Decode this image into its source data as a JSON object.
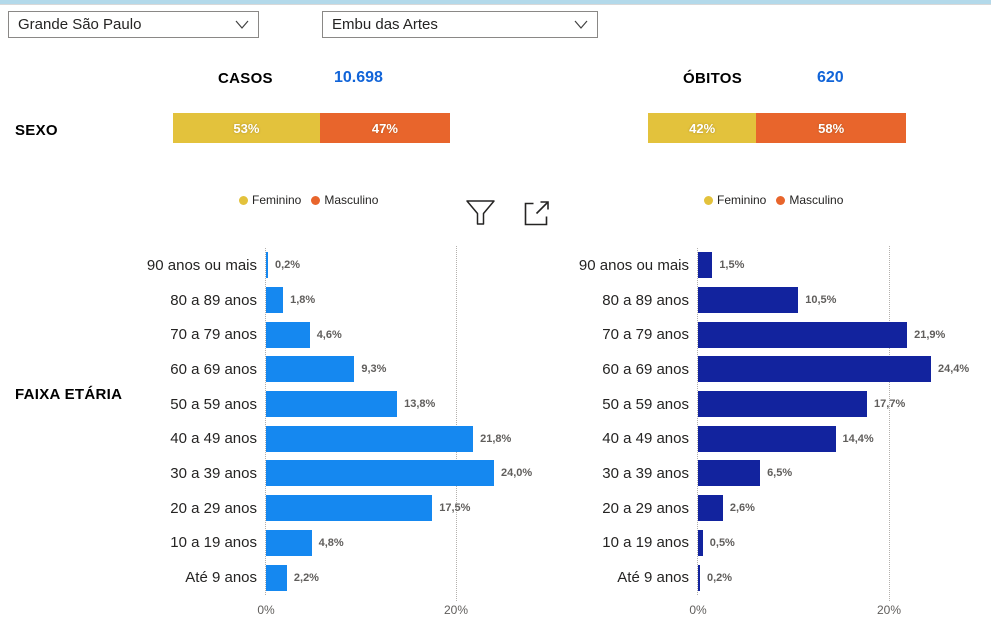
{
  "filters": {
    "region_select": "Grande São Paulo",
    "city_select": "Embu das Artes"
  },
  "kpis": {
    "casos_label": "CASOS",
    "casos_value": "10.698",
    "obitos_label": "ÓBITOS",
    "obitos_value": "620"
  },
  "sexo_section": {
    "label": "SEXO",
    "casos": {
      "feminino_pct": 53,
      "masculino_pct": 47,
      "feminino_label": "53%",
      "masculino_label": "47%"
    },
    "obitos": {
      "feminino_pct": 42,
      "masculino_pct": 58,
      "feminino_label": "42%",
      "masculino_label": "58%"
    }
  },
  "legend": {
    "feminino": "Feminino",
    "masculino": "Masculino"
  },
  "faixa_section": {
    "label": "FAIXA ETÁRIA"
  },
  "colors": {
    "feminino": "#E3C23C",
    "masculino": "#E8652C",
    "casos_bar": "#1588F0",
    "obitos_bar": "#12239E",
    "kpi_value_text": "#1164D8",
    "top_strip": "#B3D9EA"
  },
  "chart_data": [
    {
      "type": "bar",
      "orientation": "horizontal",
      "name": "casos-por-faixa-etaria",
      "categories": [
        "90 anos ou mais",
        "80 a 89 anos",
        "70 a 79 anos",
        "60 a 69 anos",
        "50 a 59 anos",
        "40 a 49 anos",
        "30 a 39 anos",
        "20 a 29 anos",
        "10 a 19 anos",
        "Até 9 anos"
      ],
      "values": [
        0.2,
        1.8,
        4.6,
        9.3,
        13.8,
        21.8,
        24.0,
        17.5,
        4.8,
        2.2
      ],
      "value_labels": [
        "0,2%",
        "1,8%",
        "4,6%",
        "9,3%",
        "13,8%",
        "21,8%",
        "24,0%",
        "17,5%",
        "4,8%",
        "2,2%"
      ],
      "x_ticks": [
        "0%",
        "20%"
      ],
      "x_tick_values": [
        0,
        20
      ],
      "xlim": [
        0,
        26
      ],
      "bar_color": "#1588F0",
      "grid": "dotted-vertical"
    },
    {
      "type": "bar",
      "orientation": "horizontal",
      "name": "obitos-por-faixa-etaria",
      "categories": [
        "90 anos ou mais",
        "80 a 89 anos",
        "70 a 79 anos",
        "60 a 69 anos",
        "50 a 59 anos",
        "40 a 49 anos",
        "30 a 39 anos",
        "20 a 29 anos",
        "10 a 19 anos",
        "Até 9 anos"
      ],
      "values": [
        1.5,
        10.5,
        21.9,
        24.4,
        17.7,
        14.4,
        6.5,
        2.6,
        0.5,
        0.2
      ],
      "value_labels": [
        "1,5%",
        "10,5%",
        "21,9%",
        "24,4%",
        "17,7%",
        "14,4%",
        "6,5%",
        "2,6%",
        "0,5%",
        "0,2%"
      ],
      "x_ticks": [
        "0%",
        "20%"
      ],
      "x_tick_values": [
        0,
        20
      ],
      "xlim": [
        0,
        26
      ],
      "bar_color": "#12239E",
      "grid": "dotted-vertical"
    }
  ]
}
